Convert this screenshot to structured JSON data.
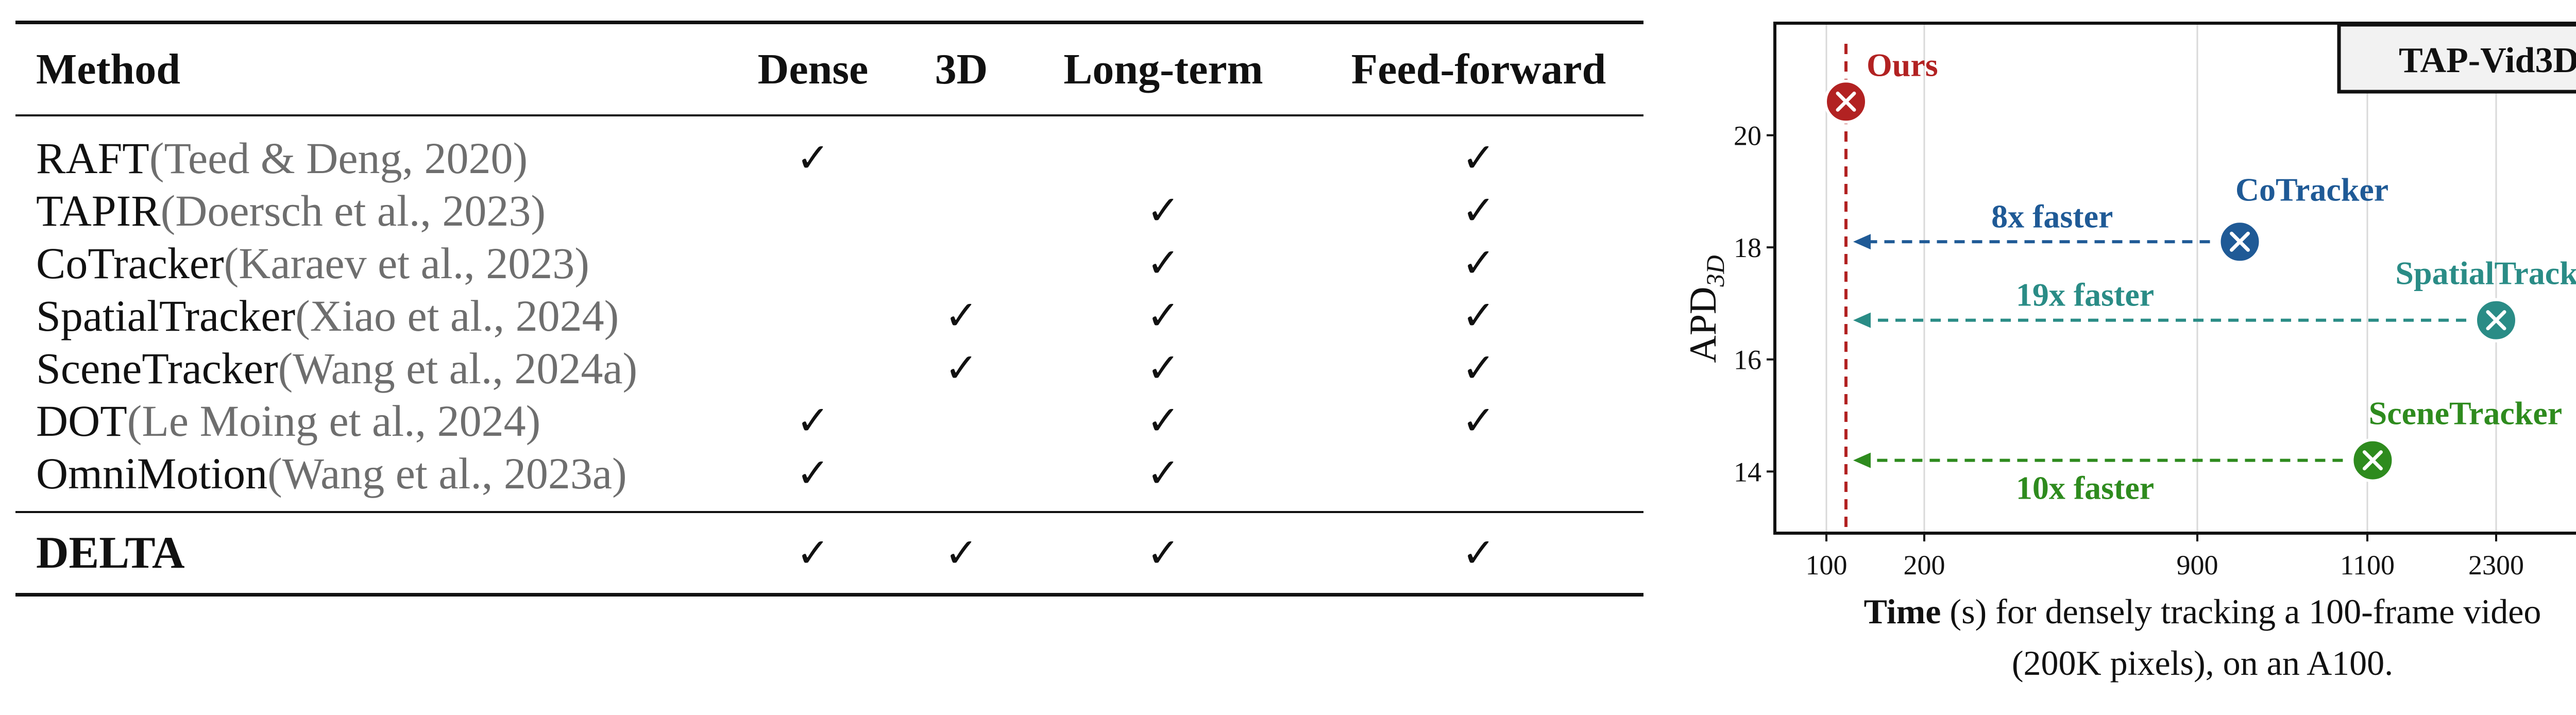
{
  "table": {
    "columns": [
      "Method",
      "Dense",
      "3D",
      "Long-term",
      "Feed-forward"
    ],
    "check_mark": "✓",
    "rows": [
      {
        "name": "RAFT",
        "cite": " (Teed & Deng, 2020)",
        "dense": true,
        "three_d": false,
        "long_term": false,
        "feed_forward": true
      },
      {
        "name": "TAPIR",
        "cite": " (Doersch et al., 2023)",
        "dense": false,
        "three_d": false,
        "long_term": true,
        "feed_forward": true
      },
      {
        "name": "CoTracker",
        "cite": " (Karaev et al., 2023)",
        "dense": false,
        "three_d": false,
        "long_term": true,
        "feed_forward": true
      },
      {
        "name": "SpatialTracker",
        "cite": " (Xiao et al., 2024)",
        "dense": false,
        "three_d": true,
        "long_term": true,
        "feed_forward": true
      },
      {
        "name": "SceneTracker",
        "cite": " (Wang et al., 2024a)",
        "dense": false,
        "three_d": true,
        "long_term": true,
        "feed_forward": true
      },
      {
        "name": "DOT",
        "cite": " (Le Moing et al., 2024)",
        "dense": true,
        "three_d": false,
        "long_term": true,
        "feed_forward": true
      },
      {
        "name": "OmniMotion",
        "cite": " (Wang et al., 2023a)",
        "dense": true,
        "three_d": false,
        "long_term": true,
        "feed_forward": false
      }
    ],
    "highlight_row": {
      "name": "DELTA",
      "dense": true,
      "three_d": true,
      "long_term": true,
      "feed_forward": true
    }
  },
  "chart_data": {
    "type": "scatter",
    "title": "TAP-Vid3D",
    "ylabel_main": "APD",
    "ylabel_sub": "3D",
    "xlabel_bold": "Time",
    "xlabel_rest": " (s) for densely tracking a 100-frame video",
    "xlabel_line2": "(200K pixels), on an A100.",
    "x_ticks": [
      {
        "value": 100,
        "label": "100"
      },
      {
        "value": 200,
        "label": "200"
      },
      {
        "value": 900,
        "label": "900"
      },
      {
        "value": 1100,
        "label": "1100"
      },
      {
        "value": 2300,
        "label": "2300"
      }
    ],
    "y_ticks": [
      14,
      16,
      18,
      20
    ],
    "ylim": [
      12.9,
      22.0
    ],
    "points": [
      {
        "name": "Ours",
        "x": 120,
        "y": 20.6,
        "color": "#b22222"
      },
      {
        "name": "CoTracker",
        "x": 950,
        "y": 18.1,
        "color": "#1f5a96"
      },
      {
        "name": "SpatialTracker",
        "x": 2300,
        "y": 16.7,
        "color": "#2a8c86"
      },
      {
        "name": "SceneTracker",
        "x": 1150,
        "y": 14.2,
        "color": "#2e8b1e"
      }
    ],
    "speedups": [
      {
        "label": "8x faster",
        "target": "CoTracker",
        "color": "#1f5a96"
      },
      {
        "label": "19x faster",
        "target": "SpatialTracker",
        "color": "#2a8c86"
      },
      {
        "label": "10x faster",
        "target": "SceneTracker",
        "color": "#2e8b1e"
      }
    ],
    "reference_line": {
      "x": 120,
      "color": "#b22222"
    },
    "grid": "vertical"
  }
}
